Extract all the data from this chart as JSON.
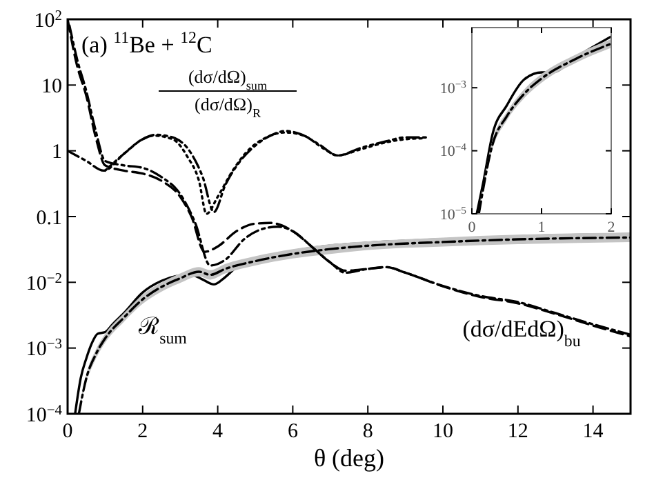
{
  "chart_data": [
    {
      "type": "line",
      "title": "(a) $^{11}$Be + $^{12}$C",
      "xlabel": "θ (deg)",
      "log": "y",
      "grid": false,
      "xlim": [
        0,
        15
      ],
      "xticks": [
        0,
        2,
        4,
        6,
        8,
        10,
        12,
        14
      ],
      "ylim": [
        0.0001,
        100
      ],
      "yticks": [
        {
          "value": 0.0001,
          "label": "10$^{−4}$"
        },
        {
          "value": 0.001,
          "label": "10$^{−3}$"
        },
        {
          "value": 0.01,
          "label": "10$^{−2}$"
        },
        0.1,
        1,
        10,
        {
          "value": 100,
          "label": "10$^{2}$"
        }
      ],
      "annotations": [
        "(dσ/dΩ)$_{sum}$",
        "(dσ/dΩ)$_{R}$",
        "ℛ$_{sum}$",
        "(dσ/dEdΩ)$_{bu}$"
      ],
      "series": [
        {
          "color": "#000000",
          "line_style": "solid",
          "x": [
            0.2,
            0.35,
            0.5,
            0.65,
            0.8,
            1,
            1.2,
            1.5,
            2,
            2.5,
            3,
            3.3,
            3.6,
            3.9,
            4.2,
            4.5,
            5,
            6,
            7,
            8,
            10,
            12,
            15
          ],
          "values": [
            0.0001,
            0.00035,
            0.0007,
            0.0012,
            0.00165,
            0.00175,
            0.0023,
            0.0034,
            0.007,
            0.0105,
            0.0127,
            0.013,
            0.011,
            0.0093,
            0.012,
            0.017,
            0.022,
            0.03,
            0.036,
            0.04,
            0.045,
            0.05,
            0.054
          ]
        },
        {
          "color": "#000000",
          "line_style": "dashdot",
          "x": [
            0.3,
            0.5,
            0.75,
            1,
            1.5,
            2,
            2.5,
            3,
            3.5,
            3.8,
            4.2,
            5,
            6,
            7,
            8,
            10,
            12,
            15
          ],
          "values": [
            0.0001,
            0.00035,
            0.0008,
            0.0014,
            0.0029,
            0.0055,
            0.0085,
            0.0115,
            0.0145,
            0.013,
            0.016,
            0.021,
            0.027,
            0.032,
            0.036,
            0.041,
            0.045,
            0.048
          ],
          "lower": [
            0.0001,
            0.0003,
            0.00068,
            0.0012,
            0.0025,
            0.0047,
            0.0072,
            0.0098,
            0.0123,
            0.011,
            0.0136,
            0.018,
            0.023,
            0.027,
            0.031,
            0.035,
            0.038,
            0.041
          ],
          "upper": [
            0.000118,
            0.00041,
            0.00094,
            0.00165,
            0.0034,
            0.0065,
            0.01,
            0.0136,
            0.017,
            0.0153,
            0.019,
            0.025,
            0.032,
            0.038,
            0.042,
            0.048,
            0.053,
            0.057
          ]
        },
        {
          "color": "#000000",
          "line_style": "dashed",
          "x": [
            0,
            0.25,
            0.5,
            0.75,
            1,
            1.5,
            2,
            2.5,
            3,
            3.3,
            3.65,
            4,
            4.5,
            5,
            5.4,
            6,
            6.5,
            7,
            7.4,
            8,
            8.5,
            9,
            10,
            11,
            12,
            13,
            14,
            15
          ],
          "values": [
            100,
            20,
            6.8,
            1.6,
            0.6,
            0.5,
            0.45,
            0.35,
            0.2,
            0.1,
            0.029,
            0.035,
            0.06,
            0.078,
            0.08,
            0.06,
            0.035,
            0.02,
            0.015,
            0.016,
            0.017,
            0.014,
            0.0087,
            0.006,
            0.0048,
            0.0033,
            0.0022,
            0.0015
          ]
        },
        {
          "color": "#000000",
          "line_style": "dashdot",
          "x": [
            0.05,
            0.25,
            0.5,
            0.75,
            1,
            1.5,
            2,
            2.5,
            3,
            3.4,
            3.8,
            4.2,
            4.7,
            5.2,
            5.6,
            6,
            6.5,
            7,
            7.4,
            8,
            8.5,
            9,
            10,
            11,
            12,
            13,
            14,
            15
          ],
          "values": [
            80,
            25,
            8,
            2,
            0.7,
            0.6,
            0.55,
            0.4,
            0.22,
            0.08,
            0.018,
            0.022,
            0.045,
            0.065,
            0.07,
            0.06,
            0.035,
            0.02,
            0.014,
            0.016,
            0.017,
            0.014,
            0.0088,
            0.0062,
            0.005,
            0.0034,
            0.0023,
            0.0016
          ]
        },
        {
          "color": "#000000",
          "line_style": "dashdotdot",
          "x": [
            0,
            0.5,
            0.96,
            1.5,
            2,
            2.35,
            2.8,
            3.3,
            3.6,
            3.9,
            4.2,
            4.6,
            5,
            5.5,
            5.8,
            6.2,
            6.7,
            7.2,
            7.8,
            8.5,
            9,
            9.6
          ],
          "values": [
            1,
            0.7,
            0.5,
            0.9,
            1.5,
            1.75,
            1.6,
            0.9,
            0.4,
            0.117,
            0.3,
            0.7,
            1.2,
            1.8,
            2,
            1.8,
            1.25,
            0.85,
            1.1,
            1.4,
            1.6,
            1.6
          ]
        },
        {
          "color": "#000000",
          "line_style": "dotted",
          "x": [
            1,
            1.5,
            2,
            2.3,
            2.8,
            3.2,
            3.5,
            3.7,
            4,
            4.4,
            4.8,
            5.3,
            5.8,
            6.3,
            6.8,
            7.2,
            7.8,
            8.5,
            9,
            9.5
          ],
          "values": [
            0.5,
            0.9,
            1.5,
            1.7,
            1.5,
            0.8,
            0.35,
            0.11,
            0.2,
            0.5,
            1.0,
            1.6,
            1.9,
            1.7,
            1.1,
            0.85,
            1.05,
            1.35,
            1.5,
            1.55
          ]
        }
      ]
    },
    {
      "type": "line",
      "log": "y",
      "grid": false,
      "xlim": [
        0,
        2
      ],
      "xticks": [
        0,
        1,
        2
      ],
      "ylim": [
        1e-05,
        0.009
      ],
      "yticks": [
        {
          "value": 1e-05,
          "label": "10$^{−5}$"
        },
        {
          "value": 0.0001,
          "label": "10$^{−4}$"
        },
        {
          "value": 0.001,
          "label": "10$^{−3}$"
        }
      ],
      "series": [
        {
          "color": "#000000",
          "line_style": "solid",
          "x": [
            0.07,
            0.16,
            0.3,
            0.5,
            0.75,
            1,
            1.15,
            1.5,
            2
          ],
          "values": [
            1e-05,
            3e-05,
            0.00019,
            0.00052,
            0.00135,
            0.00175,
            0.00175,
            0.0031,
            0.0065
          ]
        },
        {
          "color": "#000000",
          "line_style": "dashdot",
          "x": [
            0.1,
            0.3,
            0.5,
            0.75,
            1,
            1.5,
            2
          ],
          "values": [
            1e-05,
            0.00013,
            0.00035,
            0.0008,
            0.0014,
            0.0029,
            0.005
          ],
          "lower": [
            1e-05,
            0.00011,
            0.0003,
            0.00068,
            0.0012,
            0.0025,
            0.0043
          ],
          "upper": [
            1.18e-05,
            0.000153,
            0.00041,
            0.00094,
            0.00165,
            0.0034,
            0.0059
          ]
        }
      ]
    }
  ]
}
